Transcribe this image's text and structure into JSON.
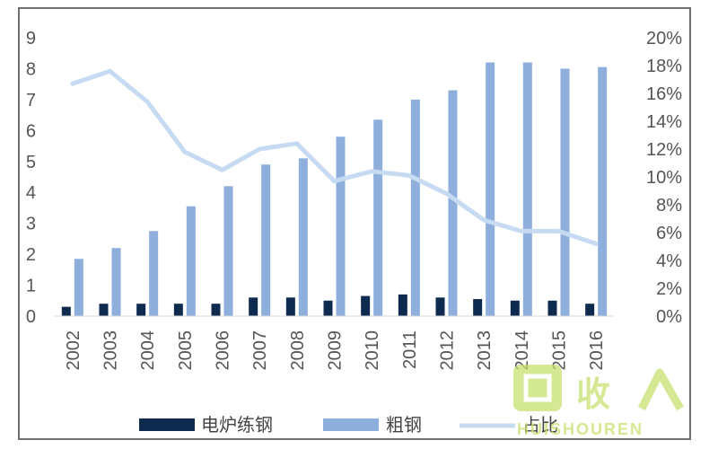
{
  "chart_data": {
    "type": "bar",
    "title": "",
    "xlabel": "",
    "ylabel": "",
    "categories": [
      "2002",
      "2003",
      "2004",
      "2005",
      "2006",
      "2007",
      "2008",
      "2009",
      "2010",
      "2011",
      "2012",
      "2013",
      "2014",
      "2015",
      "2016"
    ],
    "ylim": [
      0,
      9
    ],
    "y2lim": [
      0,
      20
    ],
    "y_ticks": [
      "0",
      "1",
      "2",
      "3",
      "4",
      "5",
      "6",
      "7",
      "8",
      "9"
    ],
    "y2_ticks": [
      "0%",
      "2%",
      "4%",
      "6%",
      "8%",
      "10%",
      "12%",
      "14%",
      "16%",
      "18%",
      "20%"
    ],
    "grid": false,
    "legend_position": "bottom",
    "series": [
      {
        "name": "电炉练钢",
        "type": "bar",
        "axis": "left",
        "color": "#0f2a4f",
        "values": [
          0.3,
          0.4,
          0.4,
          0.4,
          0.4,
          0.6,
          0.6,
          0.5,
          0.65,
          0.7,
          0.6,
          0.55,
          0.5,
          0.5,
          0.4
        ]
      },
      {
        "name": "粗钢",
        "type": "bar",
        "axis": "left",
        "color": "#8eaedc",
        "values": [
          1.85,
          2.2,
          2.75,
          3.55,
          4.2,
          4.9,
          5.1,
          5.8,
          6.35,
          7.0,
          7.3,
          8.2,
          8.2,
          8.0,
          8.05
        ]
      },
      {
        "name": "占比",
        "type": "line",
        "axis": "right",
        "color": "#c6dbf2",
        "values": [
          16.7,
          17.6,
          15.4,
          11.8,
          10.5,
          12.0,
          12.4,
          9.7,
          10.4,
          10.1,
          8.8,
          6.9,
          6.1,
          6.1,
          5.2
        ]
      }
    ]
  },
  "watermark": {
    "text_cn": "回收",
    "text_en": "HUISHOUREN",
    "color": "#c6e06a"
  }
}
